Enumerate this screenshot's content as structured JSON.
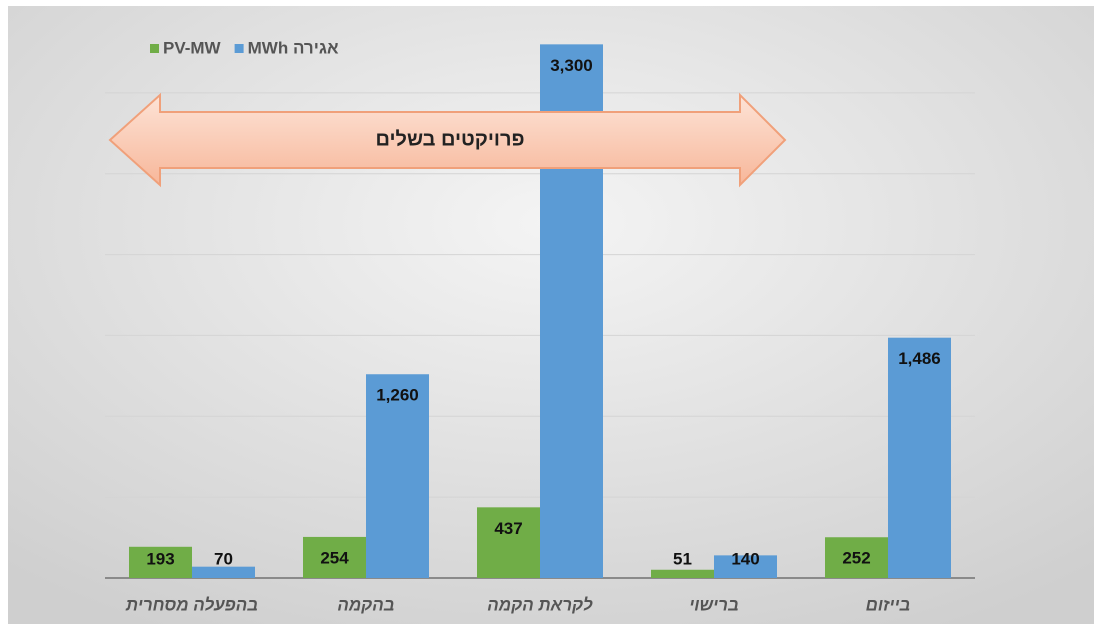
{
  "chart_data": {
    "type": "bar",
    "categories": [
      "בהפעלה מסחרית",
      "בהקמה",
      "לקראת הקמה",
      "ברישוי",
      "בייזום"
    ],
    "series": [
      {
        "name": "PV-MW",
        "color": "#70ad47",
        "values": [
          193,
          254,
          437,
          51,
          252
        ]
      },
      {
        "name": "MWh אגירה",
        "color": "#5b9bd5",
        "values": [
          70,
          1260,
          3300,
          140,
          1486
        ],
        "value_labels": [
          "70",
          "1,260",
          "3,300",
          "140",
          "1,486"
        ]
      }
    ],
    "annotation": "פרויקטים בשלים",
    "ylim": [
      0,
      3500
    ],
    "yticks": [
      0,
      500,
      1000,
      1500,
      2000,
      2500,
      3000
    ],
    "grid": true,
    "legend": "top-left"
  }
}
